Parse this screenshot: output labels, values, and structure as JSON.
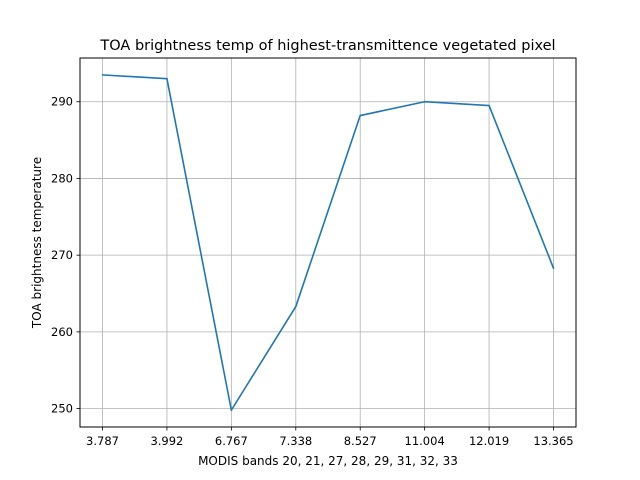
{
  "chart_data": {
    "type": "line",
    "title": "TOA brightness temp of highest-transmittence vegetated pixel",
    "xlabel": "MODIS bands 20, 21, 27, 28, 29, 31, 32, 33",
    "ylabel": "TOA brightness temperature",
    "categories": [
      "3.787",
      "3.992",
      "6.767",
      "7.338",
      "8.527",
      "11.004",
      "12.019",
      "13.365"
    ],
    "series": [
      {
        "values": [
          293.5,
          293.0,
          249.8,
          263.3,
          288.2,
          290.0,
          289.5,
          268.3
        ],
        "color": "#1f77b4"
      }
    ],
    "yticks": [
      250,
      260,
      270,
      280,
      290
    ],
    "ylim": [
      247.6,
      295.7
    ],
    "grid": true,
    "legend": "none"
  }
}
